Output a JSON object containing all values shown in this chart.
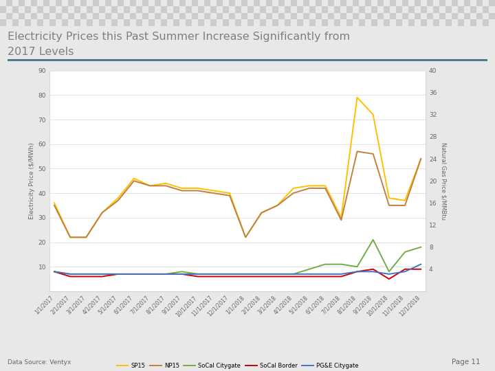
{
  "title_line1": "Electricity Prices this Past Summer Increase Significantly from",
  "title_line2": "2017 Levels",
  "title_color": "#7f7f7f",
  "background_color": "#e8e8e8",
  "chart_bg": "#ffffff",
  "accent_line_color": "#4a7c8e",
  "dates": [
    "1/1/2017",
    "2/1/2017",
    "3/1/2017",
    "4/1/2017",
    "5/1/2017",
    "6/1/2017",
    "7/1/2017",
    "8/1/2017",
    "9/1/2017",
    "10/1/2017",
    "11/1/2017",
    "12/1/2017",
    "1/1/2018",
    "2/1/2018",
    "3/1/2018",
    "4/1/2018",
    "5/1/2018",
    "6/1/2018",
    "7/1/2018",
    "8/1/2018",
    "9/1/2018",
    "10/1/2018",
    "11/1/2018",
    "12/1/2018"
  ],
  "sp15": [
    36,
    22,
    22,
    32,
    38,
    46,
    43,
    44,
    42,
    42,
    41,
    40,
    22,
    32,
    35,
    42,
    43,
    43,
    30,
    79,
    72,
    38,
    37,
    54
  ],
  "np15": [
    35,
    22,
    22,
    32,
    37,
    45,
    43,
    43,
    41,
    41,
    40,
    39,
    22,
    32,
    35,
    40,
    42,
    42,
    29,
    57,
    56,
    35,
    35,
    54
  ],
  "socal_citygate": [
    8,
    7,
    7,
    7,
    7,
    7,
    7,
    7,
    8,
    7,
    7,
    7,
    7,
    7,
    7,
    7,
    9,
    11,
    11,
    10,
    21,
    8,
    16,
    18
  ],
  "socal_border": [
    8,
    6,
    6,
    6,
    7,
    7,
    7,
    7,
    7,
    6,
    6,
    6,
    6,
    6,
    6,
    6,
    6,
    6,
    6,
    8,
    9,
    5,
    9,
    9
  ],
  "pge_citygate": [
    8,
    7,
    7,
    7,
    7,
    7,
    7,
    7,
    7,
    7,
    7,
    7,
    7,
    7,
    7,
    7,
    7,
    7,
    7,
    8,
    8,
    7,
    8,
    11
  ],
  "sp15_color": "#FFC000",
  "np15_color": "#BF8040",
  "socal_citygate_color": "#70AD47",
  "socal_border_color": "#CC0000",
  "pge_citygate_color": "#4472C4",
  "ylabel_left": "Electricity Price ($/MWh)",
  "ylabel_right": "Natural Gas Price $/MMBtu",
  "ylim_left": [
    0,
    90
  ],
  "ylim_right": [
    0,
    40
  ],
  "yticks_left": [
    10,
    20,
    30,
    40,
    50,
    60,
    70,
    80,
    90
  ],
  "yticks_right": [
    4,
    8,
    12,
    16,
    20,
    24,
    28,
    32,
    36,
    40
  ],
  "page_text": "Page 11",
  "source_text": "Data Source: Ventyx",
  "legend_labels": [
    "SP15",
    "NP15",
    "SoCal Citygate",
    "SoCal Border",
    "PG&E Citygate"
  ]
}
